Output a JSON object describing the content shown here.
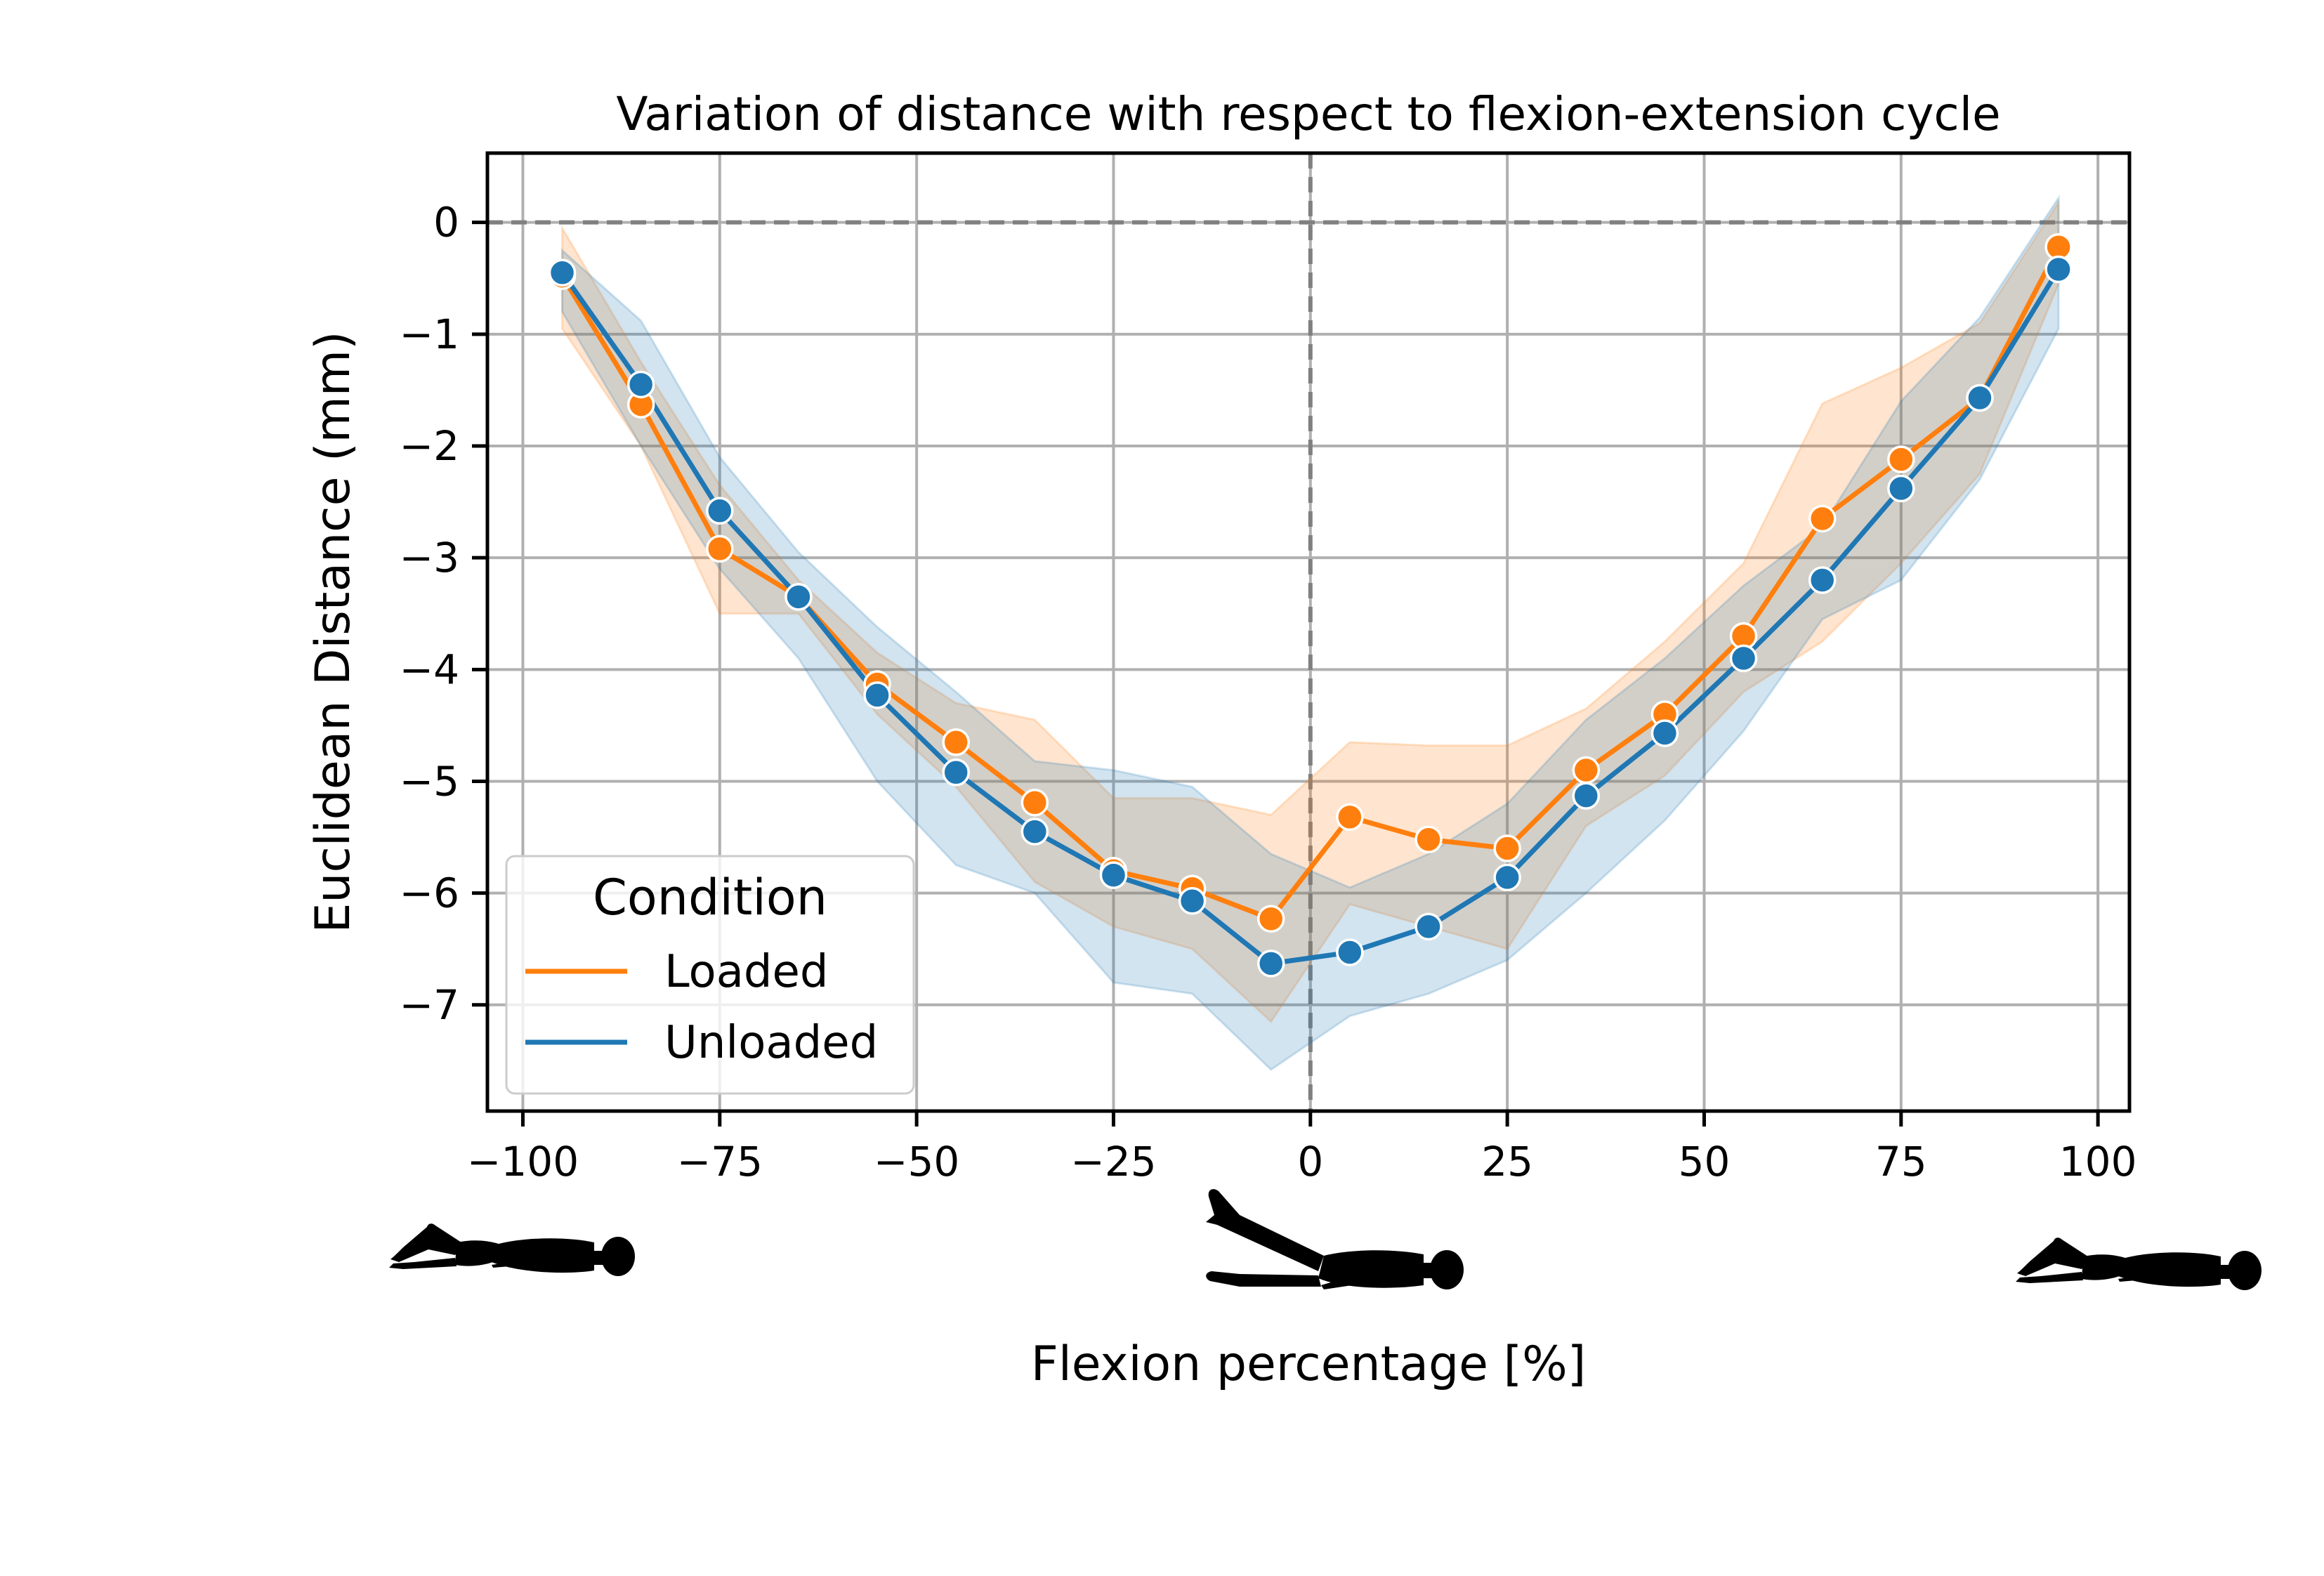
{
  "chart_data": {
    "type": "line",
    "title": "Variation of distance with respect to flexion-extension cycle",
    "xlabel": "Flexion percentage [%]",
    "ylabel": "Euclidean Distance (mm)",
    "xlim": [
      -104.5,
      104
    ],
    "ylim": [
      -7.95,
      0.62
    ],
    "xticks": [
      -100,
      -75,
      -50,
      -25,
      0,
      25,
      50,
      75,
      100
    ],
    "xtick_labels": [
      "−100",
      "−75",
      "−50",
      "−25",
      "0",
      "25",
      "50",
      "75",
      "100"
    ],
    "yticks": [
      0,
      -1,
      -2,
      -3,
      -4,
      -5,
      -6,
      -7
    ],
    "ytick_labels": [
      "0",
      "−1",
      "−2",
      "−3",
      "−4",
      "−5",
      "−6",
      "−7"
    ],
    "grid": true,
    "reference_lines": {
      "y": 0,
      "x": 0,
      "style": "dashed",
      "color": "#808080"
    },
    "x": [
      -95,
      -85,
      -75,
      -65,
      -55,
      -45,
      -35,
      -25,
      -15,
      -5,
      5,
      15,
      25,
      35,
      45,
      55,
      65,
      75,
      85,
      95
    ],
    "series": [
      {
        "name": "Loaded",
        "color": "#ff7f0e",
        "values": [
          -0.48,
          -1.63,
          -2.92,
          -3.35,
          -4.13,
          -4.65,
          -5.19,
          -5.8,
          -5.96,
          -6.23,
          -5.32,
          -5.52,
          -5.6,
          -4.9,
          -4.4,
          -3.7,
          -2.65,
          -2.12,
          -1.57,
          -0.22
        ],
        "ci_lower": [
          -0.95,
          -2.0,
          -3.5,
          -3.5,
          -4.4,
          -5.05,
          -5.9,
          -6.3,
          -6.5,
          -7.15,
          -6.1,
          -6.3,
          -6.5,
          -5.4,
          -4.95,
          -4.2,
          -3.75,
          -3.05,
          -2.25,
          -0.55
        ],
        "ci_upper": [
          -0.05,
          -1.25,
          -2.35,
          -3.2,
          -3.85,
          -4.3,
          -4.45,
          -5.15,
          -5.15,
          -5.3,
          -4.65,
          -4.68,
          -4.68,
          -4.35,
          -3.75,
          -3.05,
          -1.62,
          -1.3,
          -0.9,
          0.18
        ]
      },
      {
        "name": "Unloaded",
        "color": "#1f77b4",
        "values": [
          -0.45,
          -1.45,
          -2.58,
          -3.35,
          -4.23,
          -4.92,
          -5.45,
          -5.84,
          -6.07,
          -6.63,
          -6.53,
          -6.3,
          -5.86,
          -5.13,
          -4.57,
          -3.9,
          -3.2,
          -2.38,
          -1.57,
          -0.42
        ],
        "ci_lower": [
          -0.8,
          -2.0,
          -3.1,
          -3.9,
          -5.0,
          -5.75,
          -6.0,
          -6.8,
          -6.9,
          -7.58,
          -7.1,
          -6.9,
          -6.6,
          -6.0,
          -5.35,
          -4.55,
          -3.55,
          -3.2,
          -2.3,
          -0.95
        ],
        "ci_upper": [
          -0.25,
          -0.88,
          -2.1,
          -2.95,
          -3.62,
          -4.2,
          -4.82,
          -4.9,
          -5.05,
          -5.65,
          -5.95,
          -5.65,
          -5.2,
          -4.45,
          -3.9,
          -3.25,
          -2.72,
          -1.6,
          -0.85,
          0.22
        ]
      }
    ],
    "legend": {
      "title": "Condition",
      "position": "lower-left",
      "entries": [
        "Loaded",
        "Unloaded"
      ]
    },
    "annotations": [
      {
        "type": "silhouette-image",
        "description": "leg raised",
        "at_x": -100
      },
      {
        "type": "silhouette-image",
        "description": "legs scissored",
        "at_x": 0
      },
      {
        "type": "silhouette-image",
        "description": "leg raised",
        "at_x": 100
      }
    ]
  }
}
